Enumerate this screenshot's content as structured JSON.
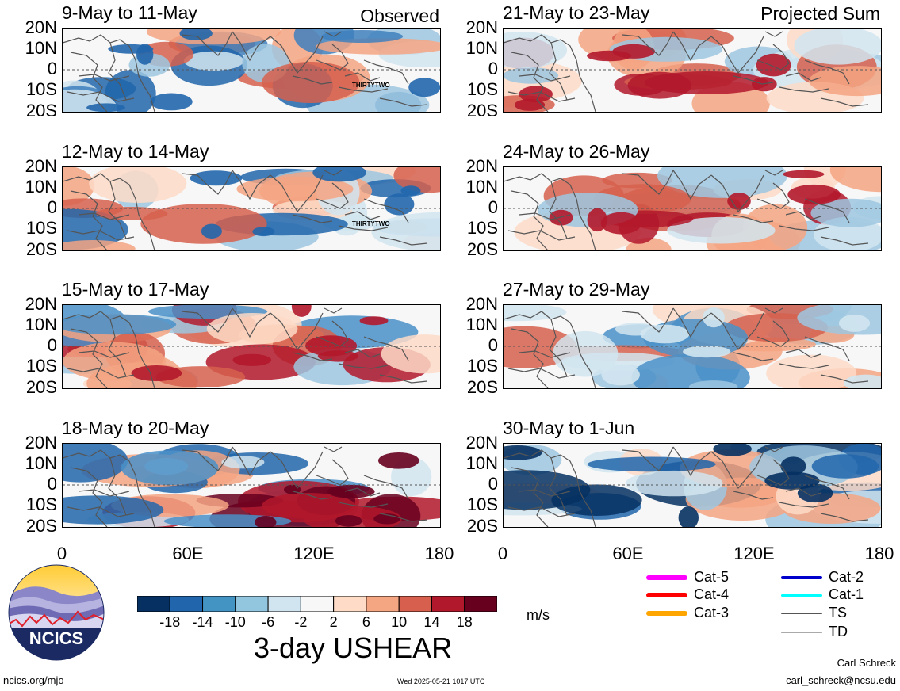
{
  "left_header": "Observed",
  "right_header": "Projected Sum",
  "lat_labels": [
    "20N",
    "10N",
    "0",
    "10S",
    "20S"
  ],
  "lon_labels": [
    "0",
    "60E",
    "120E",
    "180"
  ],
  "panels": [
    {
      "title": "9-May to 11-May",
      "storm_label": "THIRTYTWO",
      "colors": [
        "#3e80bd",
        "#9ec7e0",
        "#f4a582",
        "#d6604d",
        "#2166ac",
        "#d1e5f0"
      ]
    },
    {
      "title": "12-May to 14-May",
      "storm_label": "THIRTYTWO",
      "colors": [
        "#f4a582",
        "#d6604d",
        "#9ec7e0",
        "#fddbc7",
        "#2166ac",
        "#d1e5f0"
      ]
    },
    {
      "title": "15-May to 17-May",
      "storm_label": "",
      "colors": [
        "#d6604d",
        "#f4a582",
        "#4a90c8",
        "#9ec7e0",
        "#b2182b",
        "#fddbc7"
      ]
    },
    {
      "title": "18-May to 20-May",
      "storm_label": "",
      "colors": [
        "#b2182b",
        "#2166ac",
        "#f4a582",
        "#4a90c8",
        "#67001f",
        "#d1e5f0"
      ]
    },
    {
      "title": "21-May to 23-May",
      "storm_label": "",
      "colors": [
        "#f4a582",
        "#d6604d",
        "#9ec7e0",
        "#fddbc7",
        "#b2182b",
        "#d1e5f0"
      ]
    },
    {
      "title": "24-May to 26-May",
      "storm_label": "",
      "colors": [
        "#9ec7e0",
        "#f4a582",
        "#d1e5f0",
        "#d6604d",
        "#b2182b",
        "#fddbc7"
      ]
    },
    {
      "title": "27-May to 29-May",
      "storm_label": "",
      "colors": [
        "#4a90c8",
        "#9ec7e0",
        "#d6604d",
        "#f4a582",
        "#d1e5f0",
        "#fddbc7"
      ]
    },
    {
      "title": "30-May to 1-Jun",
      "storm_label": "",
      "colors": [
        "#9ec7e0",
        "#2166ac",
        "#f4a582",
        "#d1e5f0",
        "#053061",
        "#fddbc7"
      ]
    }
  ],
  "colorbar": {
    "colors": [
      "#053061",
      "#2166ac",
      "#4393c3",
      "#92c5de",
      "#d1e5f0",
      "#f7f7f7",
      "#fddbc7",
      "#f4a582",
      "#d6604d",
      "#b2182b",
      "#67001f"
    ],
    "tick_labels": [
      "-18",
      "-14",
      "-10",
      "-6",
      "-2",
      "2",
      "6",
      "10",
      "14",
      "18"
    ],
    "units": "m/s",
    "title": "3-day USHEAR"
  },
  "legend": [
    {
      "label": "Cat-5",
      "color": "#ff00ff"
    },
    {
      "label": "Cat-4",
      "color": "#ff0000"
    },
    {
      "label": "Cat-3",
      "color": "#ffa500"
    },
    {
      "label": "Cat-2",
      "color": "#0000cc"
    },
    {
      "label": "Cat-1",
      "color": "#00ffff"
    },
    {
      "label": "TS",
      "color": "#555555"
    },
    {
      "label": "TD",
      "color": "#aaaaaa"
    }
  ],
  "logo": {
    "text": "NCICS"
  },
  "footer": {
    "url": "ncics.org/mjo",
    "timestamp": "Wed 2025-05-21 1017 UTC",
    "author": "Carl Schreck",
    "email": "carl_schreck@ncsu.edu"
  }
}
